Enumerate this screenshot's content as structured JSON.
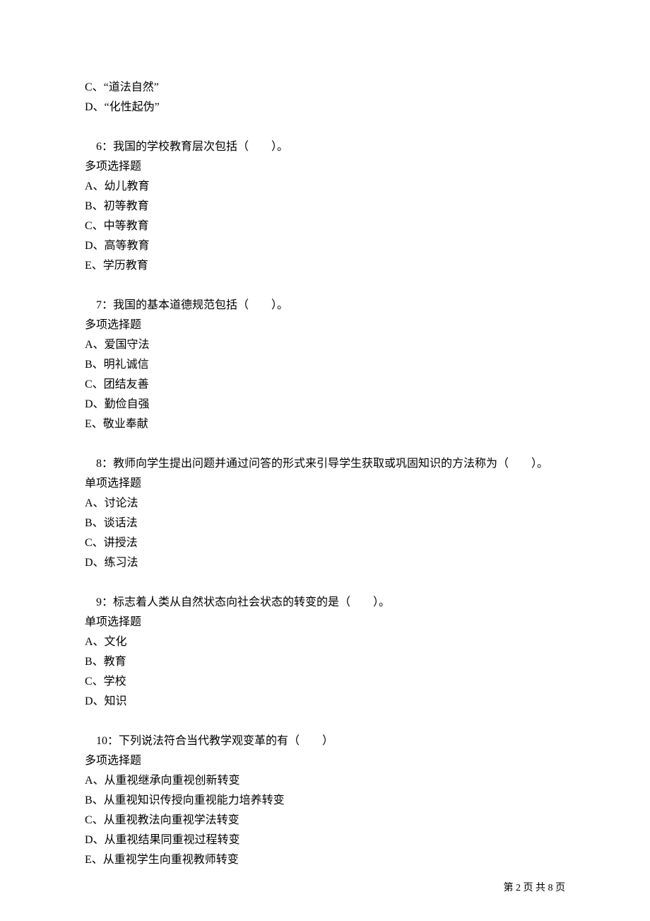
{
  "orphan": {
    "options": [
      "C、“道法自然”",
      "D、“化性起伪”"
    ]
  },
  "questions": [
    {
      "stem": "6：我国的学校教育层次包括（　　）。",
      "type": "多项选择题",
      "options": [
        "A、幼儿教育",
        "B、初等教育",
        "C、中等教育",
        "D、高等教育",
        "E、学历教育"
      ]
    },
    {
      "stem": "7：我国的基本道德规范包括（　　）。",
      "type": "多项选择题",
      "options": [
        "A、爱国守法",
        "B、明礼诚信",
        "C、团结友善",
        "D、勤俭自强",
        "E、敬业奉献"
      ]
    },
    {
      "stem": "8：教师向学生提出问题并通过问答的形式来引导学生获取或巩固知识的方法称为（　　）。",
      "type": "单项选择题",
      "options": [
        "A、讨论法",
        "B、谈话法",
        "C、讲授法",
        "D、练习法"
      ]
    },
    {
      "stem": "9：标志着人类从自然状态向社会状态的转变的是（　　）。",
      "type": "单项选择题",
      "options": [
        "A、文化",
        "B、教育",
        "C、学校",
        "D、知识"
      ]
    },
    {
      "stem": "10：下列说法符合当代教学观变革的有（　　）",
      "type": "多项选择题",
      "options": [
        "A、从重视继承向重视创新转变",
        "B、从重视知识传授向重视能力培养转变",
        "C、从重视教法向重视学法转变",
        "D、从重视结果同重视过程转变",
        "E、从重视学生向重视教师转变"
      ]
    }
  ],
  "footer": {
    "text": "第 2 页 共 8 页"
  }
}
